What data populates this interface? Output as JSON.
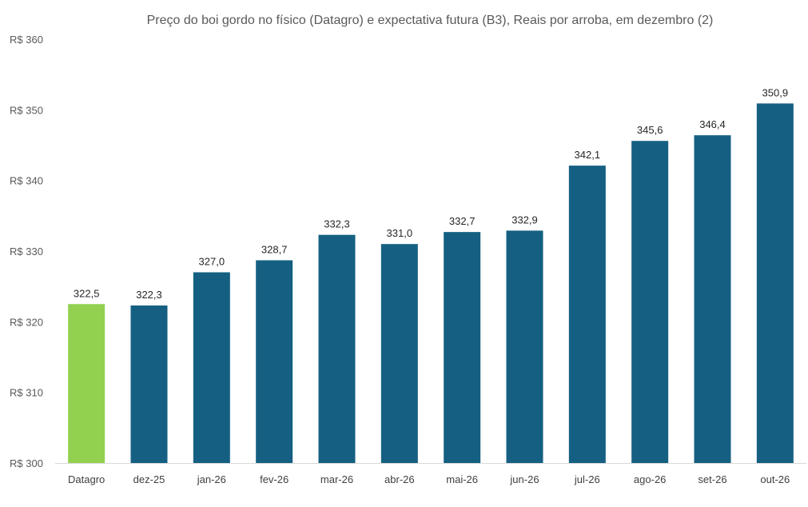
{
  "chart_data": {
    "type": "bar",
    "title": "Preço do boi gordo no físico (Datagro)  e expectativa futura (B3), Reais por arroba, em dezembro (2)",
    "xlabel": "",
    "ylabel": "",
    "ylim": [
      300,
      360
    ],
    "yticks": [
      {
        "value": 300,
        "label": "R$ 300"
      },
      {
        "value": 310,
        "label": "R$ 310"
      },
      {
        "value": 320,
        "label": "R$ 320"
      },
      {
        "value": 330,
        "label": "R$ 330"
      },
      {
        "value": 340,
        "label": "R$ 340"
      },
      {
        "value": 350,
        "label": "R$ 350"
      },
      {
        "value": 360,
        "label": "R$ 360"
      }
    ],
    "grid": false,
    "categories": [
      "Datagro",
      "dez-25",
      "jan-26",
      "fev-26",
      "mar-26",
      "abr-26",
      "mai-26",
      "jun-26",
      "jul-26",
      "ago-26",
      "set-26",
      "out-26"
    ],
    "values": [
      322.5,
      322.3,
      327.0,
      328.7,
      332.3,
      331.0,
      332.7,
      332.9,
      342.1,
      345.6,
      346.4,
      350.9
    ],
    "value_labels": [
      "322,5",
      "322,3",
      "327,0",
      "328,7",
      "332,3",
      "331,0",
      "332,7",
      "332,9",
      "342,1",
      "345,6",
      "346,4",
      "350,9"
    ],
    "colors": {
      "physical": "#92D050",
      "future": "#156082",
      "axis": "#D9D9D9"
    },
    "bar_color_keys": [
      "physical",
      "future",
      "future",
      "future",
      "future",
      "future",
      "future",
      "future",
      "future",
      "future",
      "future",
      "future"
    ]
  }
}
